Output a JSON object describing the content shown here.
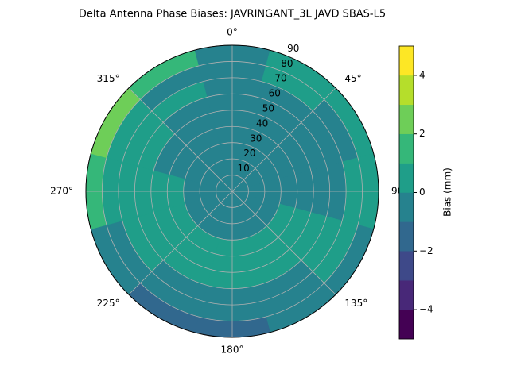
{
  "chart_data": {
    "type": "polar-contour",
    "title": "Delta Antenna Phase Biases: JAVRINGANT_3L   JAVD SBAS-L5",
    "x": [
      0,
      30,
      60,
      90,
      120,
      150,
      180,
      210,
      240,
      270,
      300,
      330
    ],
    "y": [
      5,
      15,
      25,
      35,
      45,
      55,
      65,
      75,
      85
    ],
    "values": [
      [
        -0.5,
        -0.5,
        -0.5,
        -0.5,
        -0.5,
        -0.5,
        -0.5,
        -0.5,
        -0.5,
        -0.5,
        -0.5,
        -0.5
      ],
      [
        -0.5,
        -0.5,
        -0.5,
        -0.5,
        -0.5,
        -0.5,
        -0.5,
        -0.5,
        -0.5,
        -0.5,
        -0.5,
        -0.5
      ],
      [
        -0.5,
        -0.5,
        -0.5,
        -0.5,
        -0.5,
        -0.5,
        -0.5,
        -0.5,
        -0.5,
        -0.5,
        -0.5,
        -0.5
      ],
      [
        -0.5,
        -0.5,
        -0.5,
        -0.5,
        0.5,
        0.5,
        0.5,
        0.5,
        0.5,
        0.5,
        -0.5,
        -0.5
      ],
      [
        -0.5,
        -0.5,
        -0.5,
        -0.5,
        0.5,
        0.5,
        0.5,
        0.5,
        0.5,
        0.5,
        -0.5,
        -0.5
      ],
      [
        -0.5,
        -0.5,
        -0.5,
        -0.5,
        0.5,
        0.5,
        0.5,
        0.5,
        0.5,
        0.5,
        0.5,
        -0.5
      ],
      [
        -0.5,
        -0.5,
        -0.5,
        -0.5,
        0.5,
        -0.5,
        -0.5,
        -0.5,
        0.5,
        0.5,
        0.5,
        0.5
      ],
      [
        -0.5,
        0.5,
        -0.5,
        0.5,
        0.5,
        -0.5,
        -0.5,
        -0.5,
        -0.5,
        0.5,
        0.5,
        -0.5
      ],
      [
        -0.5,
        0.5,
        0.5,
        0.5,
        -0.5,
        -0.5,
        -1.5,
        -1.5,
        -0.5,
        1.5,
        2.5,
        1.5
      ]
    ],
    "rlim": [
      0,
      90
    ],
    "rticks": [
      10,
      20,
      30,
      40,
      50,
      60,
      70,
      80,
      90
    ],
    "thetaticks": [
      {
        "value": 0,
        "label": "0°"
      },
      {
        "value": 45,
        "label": "45°"
      },
      {
        "value": 90,
        "label": "90°"
      },
      {
        "value": 135,
        "label": "135°"
      },
      {
        "value": 180,
        "label": "180°"
      },
      {
        "value": 225,
        "label": "225°"
      },
      {
        "value": 270,
        "label": "270°"
      },
      {
        "value": 315,
        "label": "315°"
      }
    ],
    "grid": true,
    "colorbar": {
      "label": "Bias (mm)",
      "levels": [
        -5,
        -4,
        -3,
        -2,
        -1,
        0,
        1,
        2,
        3,
        4,
        5
      ],
      "colors": [
        "#440154",
        "#482878",
        "#3e4989",
        "#31688e",
        "#26828e",
        "#1f9e89",
        "#35b779",
        "#6ece58",
        "#b5de2b",
        "#fde725"
      ],
      "ticks": [
        {
          "value": -4,
          "label": "−4"
        },
        {
          "value": -2,
          "label": "−2"
        },
        0,
        2,
        4
      ]
    }
  }
}
